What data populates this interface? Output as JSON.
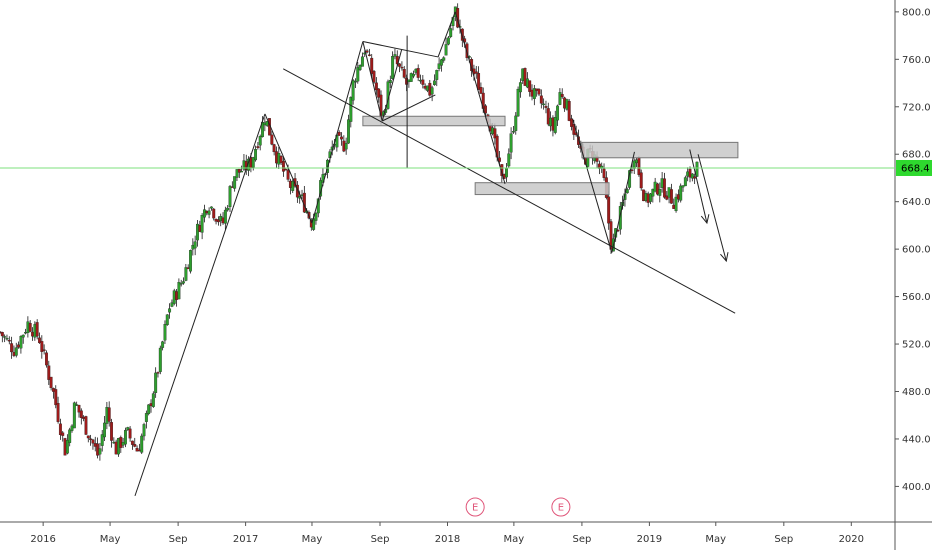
{
  "chart_data": {
    "type": "candlestick",
    "y_axis": {
      "range": [
        370,
        810
      ],
      "ticks": [
        {
          "value": 400,
          "label": "400.0"
        },
        {
          "value": 440,
          "label": "440.0"
        },
        {
          "value": 480,
          "label": "480.0"
        },
        {
          "value": 520,
          "label": "520.0"
        },
        {
          "value": 560,
          "label": "560.0"
        },
        {
          "value": 600,
          "label": "600.0"
        },
        {
          "value": 640,
          "label": "640.0"
        },
        {
          "value": 680,
          "label": "680.0"
        },
        {
          "value": 720,
          "label": "720.0"
        },
        {
          "value": 760,
          "label": "760.0"
        },
        {
          "value": 800,
          "label": "800.0"
        }
      ]
    },
    "x_axis": {
      "range": [
        "2015-10-15",
        "2020-03-20"
      ],
      "ticks": [
        {
          "date": "2016-01-01",
          "label": "2016"
        },
        {
          "date": "2016-05-01",
          "label": "May"
        },
        {
          "date": "2016-09-01",
          "label": "Sep"
        },
        {
          "date": "2017-01-01",
          "label": "2017"
        },
        {
          "date": "2017-05-01",
          "label": "May"
        },
        {
          "date": "2017-09-01",
          "label": "Sep"
        },
        {
          "date": "2018-01-01",
          "label": "2018"
        },
        {
          "date": "2018-05-01",
          "label": "May"
        },
        {
          "date": "2018-09-01",
          "label": "Sep"
        },
        {
          "date": "2019-01-01",
          "label": "2019"
        },
        {
          "date": "2019-05-01",
          "label": "May"
        },
        {
          "date": "2019-09-01",
          "label": "Sep"
        },
        {
          "date": "2020-01-01",
          "label": "2020"
        }
      ]
    },
    "last_price": {
      "value": 668.4,
      "label": "668.4"
    },
    "colors": {
      "up": "#2e9e2e",
      "down": "#9e1b1b",
      "price_line": "#7ee07e",
      "price_badge": "#2ed92e",
      "zone_fill": "#c8c8c8",
      "zone_stroke": "#777777",
      "drawing": "#222222",
      "event": "#e0567a",
      "grid": "#e6e6e6"
    },
    "price_path": [
      [
        "2015-10-15",
        530
      ],
      [
        "2015-11-10",
        515
      ],
      [
        "2015-12-05",
        538
      ],
      [
        "2015-12-25",
        525
      ],
      [
        "2016-01-20",
        478
      ],
      [
        "2016-02-10",
        430
      ],
      [
        "2016-02-28",
        470
      ],
      [
        "2016-03-20",
        448
      ],
      [
        "2016-04-10",
        425
      ],
      [
        "2016-04-25",
        465
      ],
      [
        "2016-05-10",
        430
      ],
      [
        "2016-06-01",
        445
      ],
      [
        "2016-06-20",
        430
      ],
      [
        "2016-07-05",
        455
      ],
      [
        "2016-07-25",
        495
      ],
      [
        "2016-08-15",
        550
      ],
      [
        "2016-09-10",
        575
      ],
      [
        "2016-10-01",
        610
      ],
      [
        "2016-10-25",
        640
      ],
      [
        "2016-11-20",
        620
      ],
      [
        "2016-12-10",
        662
      ],
      [
        "2017-01-10",
        672
      ],
      [
        "2017-02-05",
        712
      ],
      [
        "2017-02-25",
        680
      ],
      [
        "2017-03-20",
        655
      ],
      [
        "2017-04-15",
        640
      ],
      [
        "2017-05-01",
        622
      ],
      [
        "2017-05-20",
        660
      ],
      [
        "2017-06-10",
        690
      ],
      [
        "2017-06-30",
        688
      ],
      [
        "2017-07-15",
        742
      ],
      [
        "2017-08-05",
        770
      ],
      [
        "2017-08-25",
        735
      ],
      [
        "2017-09-05",
        708
      ],
      [
        "2017-09-25",
        762
      ],
      [
        "2017-10-20",
        738
      ],
      [
        "2017-11-10",
        748
      ],
      [
        "2017-12-01",
        732
      ],
      [
        "2017-12-25",
        765
      ],
      [
        "2018-01-15",
        800
      ],
      [
        "2018-02-05",
        762
      ],
      [
        "2018-02-25",
        740
      ],
      [
        "2018-03-20",
        705
      ],
      [
        "2018-04-10",
        655
      ],
      [
        "2018-04-25",
        690
      ],
      [
        "2018-05-15",
        748
      ],
      [
        "2018-06-05",
        730
      ],
      [
        "2018-06-25",
        720
      ],
      [
        "2018-07-10",
        700
      ],
      [
        "2018-07-25",
        735
      ],
      [
        "2018-08-15",
        705
      ],
      [
        "2018-09-01",
        675
      ],
      [
        "2018-09-20",
        682
      ],
      [
        "2018-10-10",
        660
      ],
      [
        "2018-10-25",
        600
      ],
      [
        "2018-11-15",
        640
      ],
      [
        "2018-12-05",
        682
      ],
      [
        "2018-12-25",
        640
      ],
      [
        "2019-01-20",
        655
      ],
      [
        "2019-02-15",
        640
      ],
      [
        "2019-03-10",
        660
      ],
      [
        "2019-03-28",
        668.4
      ]
    ],
    "zones": [
      {
        "start": "2017-08-01",
        "end": "2018-04-15",
        "top": 712,
        "bottom": 704
      },
      {
        "start": "2018-02-20",
        "end": "2018-10-20",
        "top": 656,
        "bottom": 646
      },
      {
        "start": "2018-09-01",
        "end": "2019-06-10",
        "top": 690,
        "bottom": 677
      }
    ],
    "trendlines": [
      {
        "from": [
          "2016-06-15",
          392
        ],
        "to": [
          "2017-02-05",
          714
        ]
      },
      {
        "from": [
          "2017-02-05",
          714
        ],
        "to": [
          "2017-05-01",
          622
        ]
      },
      {
        "from": [
          "2017-05-01",
          622
        ],
        "to": [
          "2017-08-01",
          775
        ]
      },
      {
        "from": [
          "2017-03-10",
          752
        ],
        "to": [
          "2019-06-05",
          546
        ]
      },
      {
        "from": [
          "2017-08-01",
          775
        ],
        "to": [
          "2017-09-05",
          708
        ]
      },
      {
        "from": [
          "2017-09-05",
          708
        ],
        "to": [
          "2017-10-10",
          768
        ]
      },
      {
        "from": [
          "2017-08-01",
          775
        ],
        "to": [
          "2017-12-15",
          762
        ]
      },
      {
        "from": [
          "2017-09-05",
          708
        ],
        "to": [
          "2017-12-10",
          730
        ]
      },
      {
        "from": [
          "2017-10-20",
          780
        ],
        "to": [
          "2017-10-20",
          668
        ]
      },
      {
        "from": [
          "2017-12-15",
          762
        ],
        "to": [
          "2018-01-15",
          800
        ]
      },
      {
        "from": [
          "2018-01-15",
          800
        ],
        "to": [
          "2018-04-15",
          655
        ]
      },
      {
        "from": [
          "2018-08-15",
          710
        ],
        "to": [
          "2018-10-25",
          597
        ]
      },
      {
        "from": [
          "2018-10-25",
          597
        ],
        "to": [
          "2018-12-05",
          682
        ]
      }
    ],
    "arrows": [
      {
        "from": [
          "2019-03-15",
          684
        ],
        "to": [
          "2019-04-15",
          622
        ]
      },
      {
        "from": [
          "2019-03-30",
          680
        ],
        "to": [
          "2019-05-20",
          590
        ]
      }
    ],
    "events": [
      {
        "date": "2018-02-20",
        "label": "E"
      },
      {
        "date": "2018-07-25",
        "label": "E"
      }
    ]
  }
}
